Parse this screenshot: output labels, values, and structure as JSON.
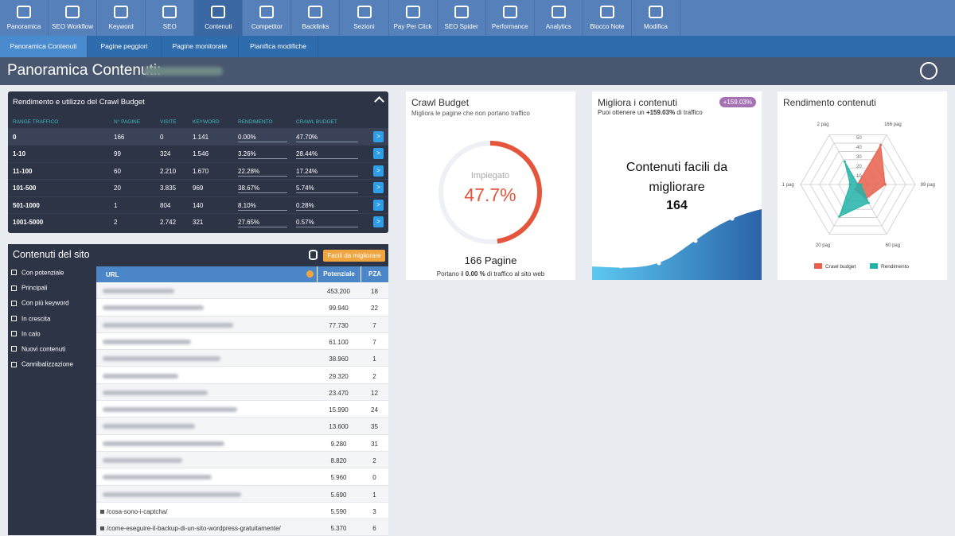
{
  "nav": {
    "items": [
      "Panoramica",
      "SEO Workflow",
      "Keyword",
      "SEO",
      "Contenuti",
      "Competitor",
      "Backlinks",
      "Sezioni",
      "Pay Per Click",
      "SEO Spider",
      "Performance",
      "Analytics",
      "Blocco Note",
      "Modifica"
    ],
    "active": 4
  },
  "subnav": {
    "items": [
      "Panoramica Contenuti",
      "Pagine peggiori",
      "Pagine monitorate",
      "Pianifica modifiche"
    ],
    "active": 0
  },
  "header": {
    "title": "Panoramica Contenuti:"
  },
  "crawl_table": {
    "title": "Rendimento e utilizzo del Crawl Budget",
    "columns": [
      "RANGE TRAFFICO",
      "N° PAGINE",
      "VISITE",
      "KEYWORD",
      "RENDIMENTO",
      "CRAWL BUDGET"
    ],
    "button": ">",
    "rows": [
      [
        "0",
        "166",
        "0",
        "1.141",
        "0.00%",
        "47.70%"
      ],
      [
        "1-10",
        "99",
        "324",
        "1.546",
        "3.26%",
        "28.44%"
      ],
      [
        "11-100",
        "60",
        "2.210",
        "1.670",
        "22.28%",
        "17.24%"
      ],
      [
        "101-500",
        "20",
        "3.835",
        "969",
        "38.67%",
        "5.74%"
      ],
      [
        "501-1000",
        "1",
        "804",
        "140",
        "8.10%",
        "0.28%"
      ],
      [
        "1001-5000",
        "2",
        "2.742",
        "321",
        "27.65%",
        "0.57%"
      ]
    ]
  },
  "crawl_card": {
    "title": "Crawl Budget",
    "subtitle": "Migliora le pagine che non portano traffico",
    "gauge_label": "Impiegato",
    "gauge_value": 47.7,
    "gauge_value_label": "47.7%",
    "pages": "166 Pagine",
    "note_before": "Portano il ",
    "note_value": "0.00 %",
    "note_after": " di traffico al sito web"
  },
  "improve_card": {
    "title": "Migliora i contenuti",
    "badge": "+159.03%",
    "subtitle_before": "Puoi ottenere un ",
    "subtitle_value": "+159.03%",
    "subtitle_after": " di traffico",
    "headline": "Contenuti facili da migliorare",
    "count": "164"
  },
  "chart_data": {
    "type": "radar",
    "title": "Rendimento contenuti",
    "axes": [
      "166 pag",
      "99 pag",
      "60 pag",
      "20 pag",
      "1 pag",
      "2 pag"
    ],
    "rlim": [
      0,
      60
    ],
    "rticks": [
      10,
      20,
      30,
      40,
      50
    ],
    "series": [
      {
        "name": "Crawl budget",
        "color": "#e8604c",
        "values": [
          47.7,
          28.44,
          17.24,
          5.74,
          0.28,
          0.57
        ]
      },
      {
        "name": "Rendimento",
        "color": "#22b3a8",
        "values": [
          0,
          3.26,
          22.28,
          38.67,
          8.1,
          27.65
        ]
      }
    ]
  },
  "site_contents": {
    "title": "Contenuti del sito",
    "button": "Facili da migliorare",
    "menu": [
      "Con potenziale",
      "Principali",
      "Con più keyword",
      "In crescita",
      "In calo",
      "Nuovi contenuti",
      "Cannibalizzazione"
    ],
    "columns": [
      "URL",
      "Potenziale",
      "PZA"
    ],
    "rows": [
      {
        "potenziale": "453.200",
        "pza": "18"
      },
      {
        "potenziale": "99.940",
        "pza": "22"
      },
      {
        "potenziale": "77.730",
        "pza": "7"
      },
      {
        "potenziale": "61.100",
        "pza": "7"
      },
      {
        "potenziale": "38.960",
        "pza": "1"
      },
      {
        "potenziale": "29.320",
        "pza": "2"
      },
      {
        "potenziale": "23.470",
        "pza": "12"
      },
      {
        "potenziale": "15.990",
        "pza": "24"
      },
      {
        "potenziale": "13.600",
        "pza": "35"
      },
      {
        "potenziale": "9.280",
        "pza": "31"
      },
      {
        "potenziale": "8.820",
        "pza": "2"
      },
      {
        "potenziale": "5.960",
        "pza": "0"
      },
      {
        "potenziale": "5.690",
        "pza": "1"
      },
      {
        "url": "/cosa-sono-i-captcha/",
        "potenziale": "5.590",
        "pza": "3"
      },
      {
        "url": "/come-eseguire-il-backup-di-un-sito-wordpress-gratuitamente/",
        "potenziale": "5.370",
        "pza": "6"
      }
    ]
  }
}
